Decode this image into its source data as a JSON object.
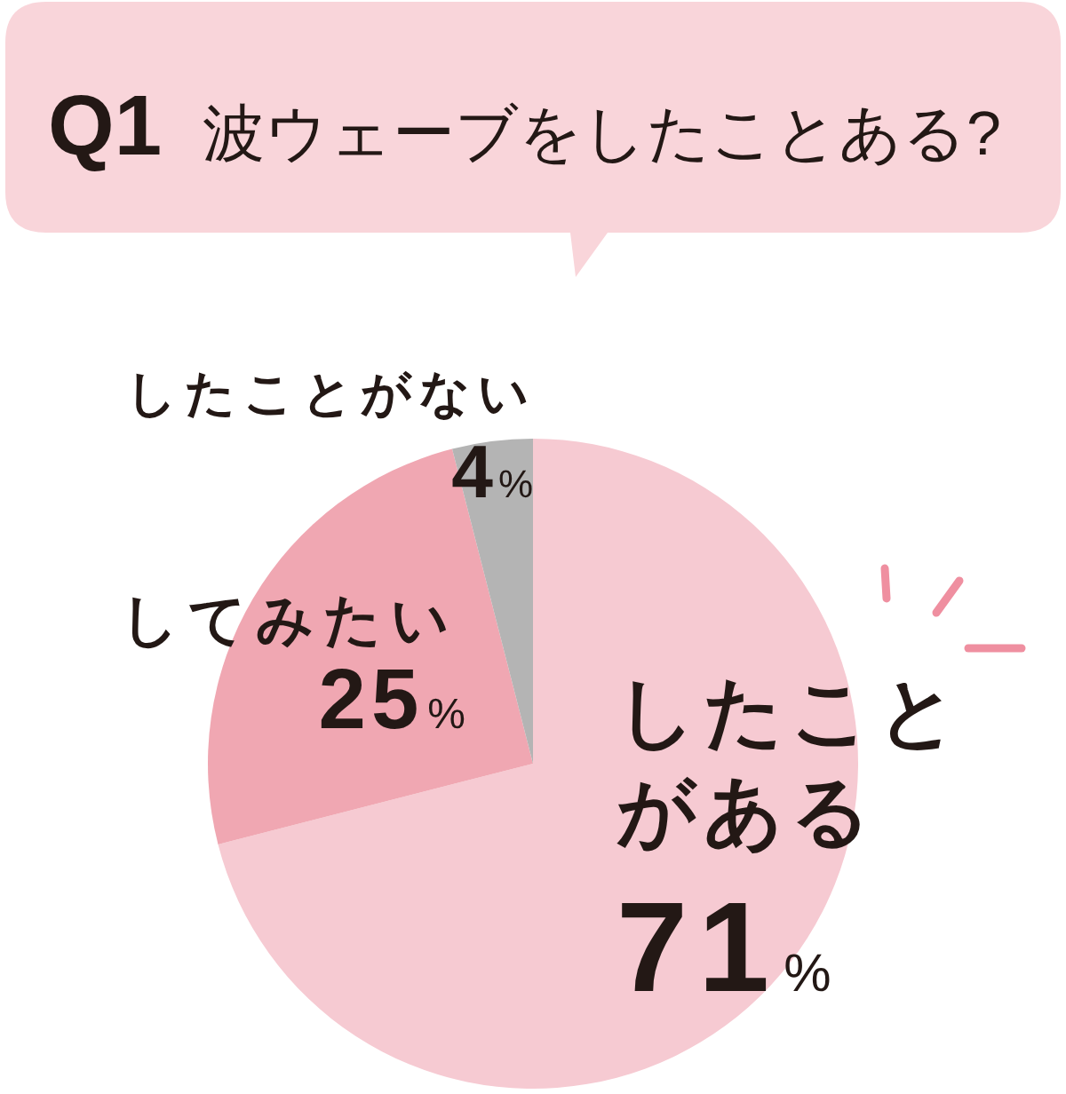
{
  "chart_data": {
    "type": "pie",
    "title": "Q1 波ウェーブをしたことある?",
    "categories": [
      "したことがある",
      "してみたい",
      "したことがない"
    ],
    "values": [
      71,
      25,
      4
    ],
    "colors": [
      "#f6cad2",
      "#f0a7b2",
      "#b4b4b4"
    ],
    "value_labels": [
      "71%",
      "25%",
      "4%"
    ]
  }
}
